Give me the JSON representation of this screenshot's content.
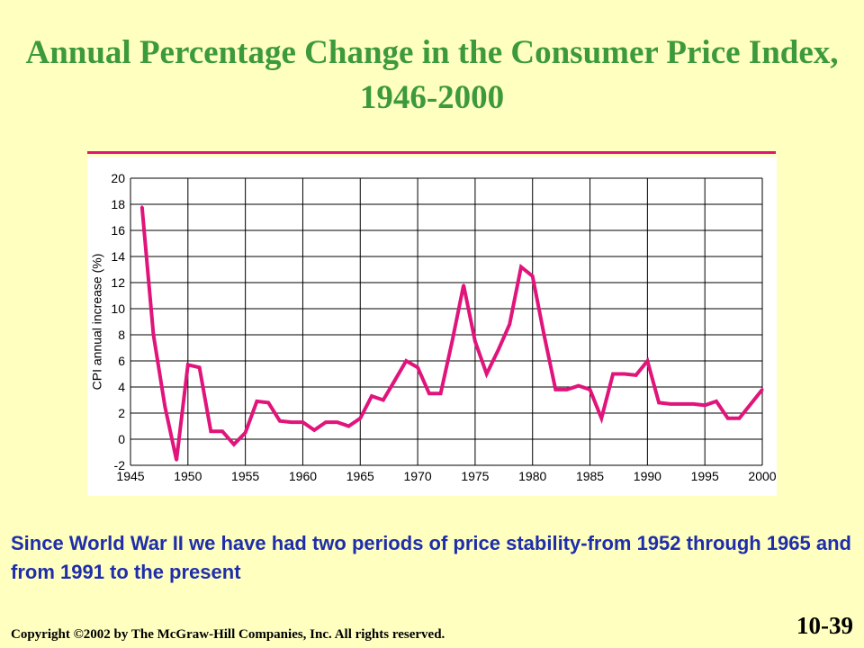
{
  "slide": {
    "title": "Annual Percentage Change in the Consumer Price Index, 1946-2000",
    "body_text": "Since World War II we have had two periods of price stability-from 1952 through 1965 and from 1991 to the present",
    "copyright": "Copyright ©2002 by The McGraw-Hill Companies, Inc.  All rights reserved.",
    "slide_number": "10-39"
  },
  "colors": {
    "background": "#FFFFC0",
    "title": "#3C9A3C",
    "line": "#E0147A",
    "body_text": "#1E2EAA"
  },
  "chart_data": {
    "type": "line",
    "title": "",
    "xlabel": "",
    "ylabel": "CPI annual increase (%)",
    "xlim": [
      1945,
      2000
    ],
    "ylim": [
      -2,
      20
    ],
    "x_ticks": [
      "1945",
      "1950",
      "1955",
      "1960",
      "1965",
      "1970",
      "1975",
      "1980",
      "1985",
      "1990",
      "1995",
      "2000"
    ],
    "y_ticks": [
      "-2",
      "0",
      "2",
      "4",
      "6",
      "8",
      "10",
      "12",
      "14",
      "16",
      "18",
      "20"
    ],
    "grid": true,
    "series": [
      {
        "x": [
          1946,
          1947,
          1948,
          1949,
          1950,
          1951,
          1952,
          1953,
          1954,
          1955,
          1956,
          1957,
          1958,
          1959,
          1960,
          1961,
          1962,
          1963,
          1964,
          1965,
          1966,
          1967,
          1968,
          1969,
          1970,
          1971,
          1972,
          1973,
          1974,
          1975,
          1976,
          1977,
          1978,
          1979,
          1980,
          1981,
          1982,
          1983,
          1984,
          1985,
          1986,
          1987,
          1988,
          1989,
          1990,
          1991,
          1992,
          1993,
          1994,
          1995,
          1996,
          1997,
          1998,
          1999,
          2000
        ],
        "values": [
          17.8,
          8.0,
          2.5,
          -1.6,
          5.7,
          5.5,
          0.6,
          0.6,
          -0.4,
          0.5,
          2.9,
          2.8,
          1.4,
          1.3,
          1.3,
          0.7,
          1.3,
          1.3,
          1.0,
          1.6,
          3.3,
          3.0,
          4.5,
          6.0,
          5.5,
          3.5,
          3.5,
          7.5,
          11.8,
          7.5,
          5.0,
          6.8,
          8.8,
          13.2,
          12.5,
          8.0,
          3.8,
          3.8,
          4.1,
          3.8,
          1.6,
          5.0,
          5.0,
          4.9,
          6.0,
          2.8,
          2.7,
          2.7,
          2.7,
          2.6,
          2.9,
          1.6,
          1.6,
          2.7,
          3.8
        ]
      }
    ]
  }
}
